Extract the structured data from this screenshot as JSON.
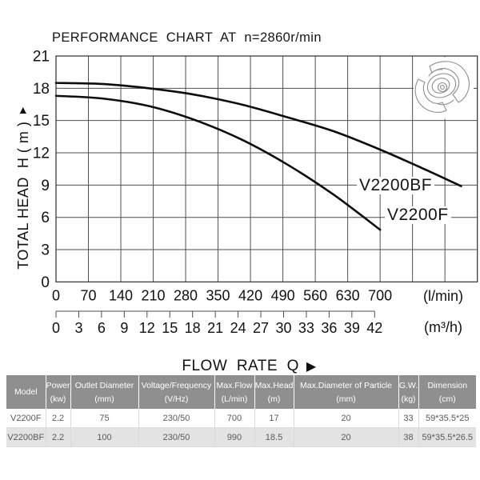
{
  "title": "PERFORMANCE  CHART  AT  n=2860r/min",
  "y_axis": {
    "title": "TOTAL HEAD  H ( m )",
    "arrow": "▲"
  },
  "x_axis": {
    "label": "FLOW  RATE  Q",
    "arrow": "▶",
    "lmin_unit": "(l/min)",
    "m3h_unit": "(m³/h)"
  },
  "colors": {
    "grid": "#4f4f4f",
    "plot_border": "#3d3d3d",
    "curve": "#0d0d0d",
    "axis_text": "#111111",
    "impeller_stroke": "#8e8e8e",
    "table_header_bg": "#8f8f8f",
    "table_header_text": "#ffffff",
    "table_alt_row_bg": "#e3e3e3",
    "table_text": "#5a5a5a"
  },
  "chart_data": {
    "type": "line",
    "title": "PERFORMANCE CHART AT n=2860r/min",
    "xlabel": "FLOW RATE Q",
    "ylabel": "TOTAL HEAD H (m)",
    "grid": true,
    "ylim": [
      0,
      21
    ],
    "y_ticks": [
      21,
      18,
      15,
      12,
      9,
      6,
      3,
      0
    ],
    "x_ticks_lmin": [
      0,
      70,
      140,
      210,
      280,
      350,
      420,
      490,
      560,
      630,
      700
    ],
    "x_ticks_m3h": [
      0,
      3,
      6,
      9,
      12,
      15,
      18,
      21,
      24,
      27,
      30,
      33,
      36,
      39,
      42
    ],
    "x_grid_columns": 13,
    "x_grid_step_lmin": 70,
    "series": [
      {
        "name": "V2200BF",
        "x_unit": "l/min",
        "y_unit": "m",
        "points": [
          [
            0,
            18.5
          ],
          [
            100,
            18.4
          ],
          [
            200,
            18.0
          ],
          [
            300,
            17.4
          ],
          [
            400,
            16.5
          ],
          [
            500,
            15.3
          ],
          [
            600,
            14.0
          ],
          [
            700,
            12.3
          ],
          [
            800,
            10.4
          ],
          [
            875,
            8.9
          ]
        ]
      },
      {
        "name": "V2200F",
        "x_unit": "l/min",
        "y_unit": "m",
        "points": [
          [
            0,
            17.3
          ],
          [
            100,
            17.05
          ],
          [
            200,
            16.35
          ],
          [
            300,
            15.05
          ],
          [
            400,
            13.25
          ],
          [
            500,
            10.9
          ],
          [
            600,
            8.1
          ],
          [
            700,
            4.85
          ]
        ]
      }
    ]
  },
  "table": {
    "headers": [
      {
        "line1": "Model",
        "line2": ""
      },
      {
        "line1": "Power",
        "line2": "(kw)"
      },
      {
        "line1": "Outlet Diameter",
        "line2": "(mm)"
      },
      {
        "line1": "Voltage/Frequency",
        "line2": "(V/Hz)"
      },
      {
        "line1": "Max.Flow",
        "line2": "(L/min)"
      },
      {
        "line1": "Max.Head",
        "line2": "(m)"
      },
      {
        "line1": "Max.Diameter of Particle",
        "line2": "(mm)"
      },
      {
        "line1": "G.W.",
        "line2": "(kg)"
      },
      {
        "line1": "Dimension",
        "line2": "(cm)"
      }
    ],
    "rows": [
      [
        "V2200F",
        "2.2",
        "75",
        "230/50",
        "700",
        "17",
        "20",
        "33",
        "59*35.5*25"
      ],
      [
        "V2200BF",
        "2.2",
        "100",
        "230/50",
        "990",
        "18.5",
        "20",
        "38",
        "59*35.5*26.5"
      ]
    ]
  }
}
